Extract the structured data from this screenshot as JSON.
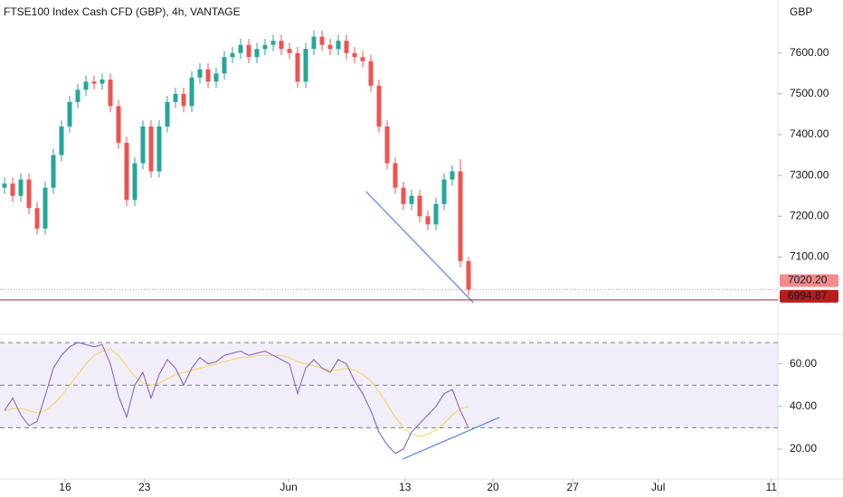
{
  "chart_data": [
    {
      "type": "candlestick",
      "title": "FTSE100 Index Cash CFD (GBP), 4h, VANTAGE",
      "currency": "GBP",
      "up_color": "#26a69a",
      "down_color": "#ef5350",
      "open": [
        7270,
        7280,
        7250,
        7290,
        7220,
        7170,
        7270,
        7350,
        7420,
        7480,
        7510,
        7530,
        7525,
        7535,
        7470,
        7380,
        7240,
        7330,
        7420,
        7310,
        7420,
        7480,
        7500,
        7470,
        7540,
        7560,
        7530,
        7550,
        7590,
        7600,
        7620,
        7590,
        7610,
        7620,
        7630,
        7610,
        7600,
        7530,
        7610,
        7640,
        7620,
        7610,
        7630,
        7600,
        7590,
        7580,
        7520,
        7420,
        7330,
        7270,
        7230,
        7250,
        7200,
        7180,
        7230,
        7290,
        7310,
        7090
      ],
      "high": [
        7295,
        7295,
        7305,
        7305,
        7235,
        7285,
        7365,
        7435,
        7495,
        7525,
        7545,
        7545,
        7550,
        7550,
        7485,
        7395,
        7345,
        7435,
        7435,
        7435,
        7495,
        7515,
        7515,
        7555,
        7575,
        7575,
        7565,
        7605,
        7615,
        7635,
        7635,
        7625,
        7635,
        7645,
        7645,
        7625,
        7615,
        7625,
        7655,
        7655,
        7635,
        7645,
        7645,
        7615,
        7605,
        7595,
        7535,
        7435,
        7345,
        7285,
        7265,
        7265,
        7215,
        7245,
        7305,
        7325,
        7340,
        7100
      ],
      "low": [
        7255,
        7235,
        7235,
        7205,
        7155,
        7155,
        7255,
        7335,
        7405,
        7465,
        7495,
        7510,
        7510,
        7455,
        7365,
        7225,
        7225,
        7315,
        7295,
        7295,
        7405,
        7465,
        7455,
        7455,
        7525,
        7515,
        7515,
        7535,
        7575,
        7585,
        7575,
        7575,
        7595,
        7605,
        7595,
        7585,
        7515,
        7515,
        7595,
        7605,
        7595,
        7595,
        7585,
        7575,
        7565,
        7505,
        7405,
        7315,
        7255,
        7215,
        7215,
        7185,
        7165,
        7165,
        7215,
        7275,
        7075,
        7005
      ],
      "close": [
        7280,
        7250,
        7290,
        7220,
        7170,
        7270,
        7350,
        7420,
        7480,
        7510,
        7530,
        7525,
        7535,
        7470,
        7380,
        7240,
        7330,
        7420,
        7310,
        7420,
        7480,
        7500,
        7470,
        7540,
        7560,
        7530,
        7550,
        7590,
        7600,
        7620,
        7590,
        7610,
        7620,
        7630,
        7610,
        7600,
        7530,
        7610,
        7640,
        7620,
        7610,
        7630,
        7600,
        7590,
        7580,
        7520,
        7420,
        7330,
        7270,
        7230,
        7250,
        7200,
        7180,
        7230,
        7290,
        7310,
        7090,
        7020.2
      ],
      "xlim": [
        -0.556,
        95
      ],
      "ylim": [
        6915,
        7730
      ],
      "yticks": [
        {
          "value": 7100,
          "label": "7100.00"
        },
        {
          "value": 7200,
          "label": "7200.00"
        },
        {
          "value": 7300,
          "label": "7300.00"
        },
        {
          "value": 7400,
          "label": "7400.00"
        },
        {
          "value": 7500,
          "label": "7500.00"
        },
        {
          "value": 7600,
          "label": "7600.00"
        }
      ],
      "price_lines": [
        {
          "value": 7020.2,
          "label": "7020.20",
          "color": "#f28b8b",
          "style": "dotted"
        },
        {
          "value": 6994.87,
          "label": "6994.87",
          "color": "#b71c1c",
          "style": "solid"
        }
      ],
      "trendlines": [
        {
          "x": [
            44.4,
            57.6
          ],
          "y": [
            7261,
            6988
          ],
          "color": "#5b8def"
        }
      ]
    },
    {
      "type": "line",
      "color": "#7e57c2",
      "ma_color": "#f0d94a",
      "values": [
        38,
        44,
        36,
        31,
        33,
        45,
        58,
        64,
        68,
        70,
        69,
        68,
        69,
        60,
        45,
        35,
        50,
        56,
        44,
        55,
        62,
        58,
        50,
        58,
        63,
        60,
        61,
        64,
        65,
        66,
        64,
        65,
        66,
        64,
        62,
        60,
        46,
        58,
        62,
        58,
        56,
        62,
        60,
        52,
        46,
        38,
        28,
        22,
        18,
        20,
        28,
        32,
        36,
        40,
        46,
        48,
        38,
        30
      ],
      "ma": [
        38,
        39,
        39,
        38,
        37,
        38,
        41,
        45,
        50,
        55,
        60,
        64,
        66,
        67,
        64,
        59,
        54,
        51,
        50,
        51,
        53,
        55,
        56,
        57,
        58,
        59,
        60,
        61,
        62,
        63,
        63,
        64,
        64,
        64,
        64,
        63,
        61,
        60,
        59,
        58,
        57,
        57,
        58,
        57,
        55,
        52,
        47,
        41,
        35,
        30,
        27,
        26,
        27,
        29,
        32,
        36,
        39,
        40
      ],
      "xlim": [
        -0.556,
        95
      ],
      "ylim": [
        6,
        73
      ],
      "yticks": [
        {
          "value": 20,
          "label": "20.00"
        },
        {
          "value": 40,
          "label": "40.00"
        },
        {
          "value": 60,
          "label": "60.00"
        }
      ],
      "levels": [
        70,
        50,
        30
      ],
      "band": [
        30,
        70
      ],
      "xticks": [
        {
          "value": 7.44,
          "label": "16"
        },
        {
          "value": 17.2,
          "label": "23"
        },
        {
          "value": 34.9,
          "label": "Jun"
        },
        {
          "value": 49.2,
          "label": "13"
        },
        {
          "value": 60,
          "label": "20"
        },
        {
          "value": 69.8,
          "label": "27"
        },
        {
          "value": 80.3,
          "label": "Jul"
        },
        {
          "value": 94.2,
          "label": "11"
        }
      ],
      "trendlines": [
        {
          "x": [
            48.9,
            60.8
          ],
          "y": [
            15.3,
            34.9
          ],
          "color": "#5b8def"
        }
      ]
    }
  ]
}
